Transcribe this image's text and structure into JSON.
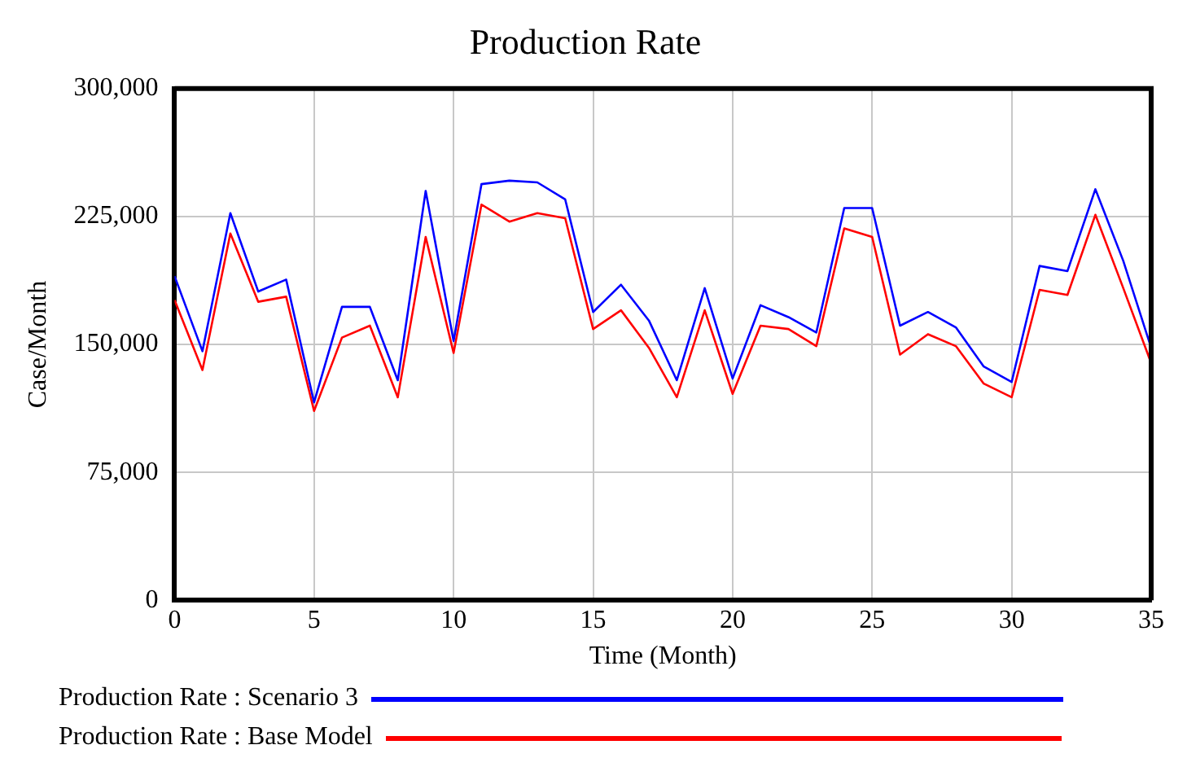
{
  "chart_data": {
    "type": "line",
    "title": "Production Rate",
    "xlabel": "Time (Month)",
    "ylabel": "Case/Month",
    "x": [
      0,
      1,
      2,
      3,
      4,
      5,
      6,
      7,
      8,
      9,
      10,
      11,
      12,
      13,
      14,
      15,
      16,
      17,
      18,
      19,
      20,
      21,
      22,
      23,
      24,
      25,
      26,
      27,
      28,
      29,
      30,
      31,
      32,
      33,
      34,
      35
    ],
    "series": [
      {
        "name": "Production Rate : Scenario 3",
        "color": "#0000ff",
        "values": [
          190000,
          146000,
          227000,
          181000,
          188000,
          116000,
          172000,
          172000,
          129000,
          240000,
          152000,
          244000,
          246000,
          245000,
          235000,
          169000,
          185000,
          164000,
          129000,
          183000,
          130000,
          173000,
          166000,
          157000,
          230000,
          230000,
          161000,
          169000,
          160000,
          137000,
          128000,
          196000,
          193000,
          241000,
          199000,
          148000
        ]
      },
      {
        "name": "Production Rate : Base Model",
        "color": "#ff0000",
        "values": [
          176000,
          135000,
          215000,
          175000,
          178000,
          111000,
          154000,
          161000,
          119000,
          213000,
          145000,
          232000,
          222000,
          227000,
          224000,
          159000,
          170000,
          148000,
          119000,
          170000,
          121000,
          161000,
          159000,
          149000,
          218000,
          213000,
          144000,
          156000,
          149000,
          127000,
          119000,
          182000,
          179000,
          226000,
          183000,
          139000
        ]
      }
    ],
    "xlim": [
      0,
      35
    ],
    "xticks": [
      0,
      5,
      10,
      15,
      20,
      25,
      30,
      35
    ],
    "ylim": [
      0,
      300000
    ],
    "yticks": [
      0,
      {
        "value": 75000,
        "label": "75,000"
      },
      {
        "value": 150000,
        "label": "150,000"
      },
      {
        "value": 225000,
        "label": "225,000"
      },
      {
        "value": 300000,
        "label": "300,000"
      }
    ],
    "grid": true,
    "legend": "bottom",
    "marker": "none",
    "line_style": "solid"
  }
}
